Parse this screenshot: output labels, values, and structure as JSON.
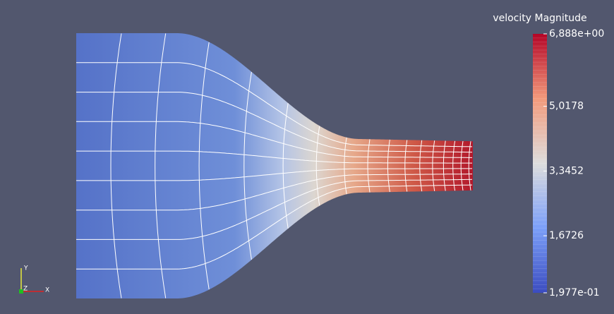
{
  "colorbar": {
    "title": "velocity Magnitude",
    "ticks": [
      {
        "value": 6.888,
        "label": "6,888e+00"
      },
      {
        "value": 5.0178,
        "label": "5,0178"
      },
      {
        "value": 3.3452,
        "label": "3,3452"
      },
      {
        "value": 1.6726,
        "label": "1,6726"
      },
      {
        "value": 0.1977,
        "label": "1,977e-01"
      }
    ]
  },
  "axes_triad": {
    "x": "X",
    "y": "Y",
    "z": "Z"
  }
}
